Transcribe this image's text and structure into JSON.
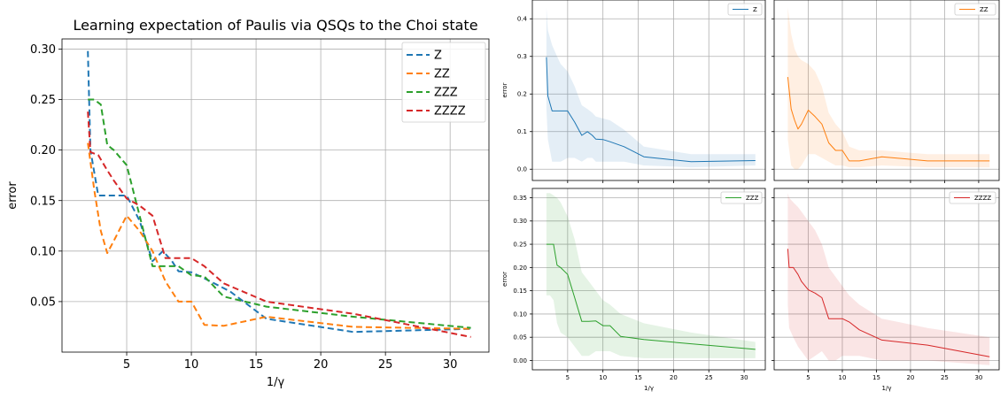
{
  "chart_data": [
    {
      "type": "line",
      "title": "Learning expectation of Paulis via QSQs to the Choi state",
      "xlabel": "1/γ",
      "ylabel": "error",
      "xlim": [
        0,
        33
      ],
      "ylim": [
        0.0,
        0.31
      ],
      "xticks": [
        5,
        10,
        15,
        20,
        25,
        30
      ],
      "yticks": [
        0.05,
        0.1,
        0.15,
        0.2,
        0.25,
        0.3
      ],
      "xtick_labels": [
        "5",
        "10",
        "15",
        "20",
        "25",
        "30"
      ],
      "ytick_labels": [
        "0.05",
        "0.10",
        "0.15",
        "0.20",
        "0.25",
        "0.30"
      ],
      "grid": true,
      "legend_position": "top-right",
      "line_style": "dashed",
      "series": [
        {
          "name": "Z",
          "color": "#1f77b4",
          "x": [
            2.0,
            2.2,
            2.8,
            3.5,
            4.0,
            5.0,
            6.0,
            7.0,
            7.8,
            8.5,
            9.0,
            10.0,
            11.0,
            13.0,
            15.8,
            22.5,
            31.6
          ],
          "y": [
            0.298,
            0.2,
            0.155,
            0.155,
            0.155,
            0.155,
            0.13,
            0.09,
            0.1,
            0.09,
            0.08,
            0.079,
            0.073,
            0.06,
            0.033,
            0.02,
            0.023
          ]
        },
        {
          "name": "ZZ",
          "color": "#ff7f0e",
          "x": [
            2.0,
            2.5,
            3.0,
            3.5,
            4.0,
            5.0,
            6.0,
            7.0,
            8.0,
            9.0,
            10.0,
            11.0,
            12.5,
            15.8,
            22.5,
            31.6
          ],
          "y": [
            0.207,
            0.16,
            0.12,
            0.098,
            0.11,
            0.135,
            0.12,
            0.1,
            0.07,
            0.05,
            0.05,
            0.027,
            0.026,
            0.035,
            0.025,
            0.023
          ]
        },
        {
          "name": "ZZZ",
          "color": "#2ca02c",
          "x": [
            2.0,
            2.5,
            3.0,
            3.5,
            4.0,
            5.0,
            6.0,
            7.0,
            8.0,
            9.0,
            10.0,
            11.0,
            12.5,
            15.8,
            22.5,
            31.6
          ],
          "y": [
            0.25,
            0.25,
            0.245,
            0.205,
            0.2,
            0.185,
            0.135,
            0.085,
            0.085,
            0.085,
            0.076,
            0.075,
            0.055,
            0.045,
            0.035,
            0.024
          ]
        },
        {
          "name": "ZZZZ",
          "color": "#d62728",
          "x": [
            2.0,
            2.2,
            2.8,
            3.5,
            4.0,
            5.0,
            6.0,
            7.0,
            8.0,
            9.0,
            10.0,
            11.0,
            12.5,
            15.8,
            22.5,
            31.6
          ],
          "y": [
            0.238,
            0.198,
            0.195,
            0.18,
            0.17,
            0.152,
            0.145,
            0.135,
            0.093,
            0.093,
            0.093,
            0.085,
            0.068,
            0.05,
            0.038,
            0.015
          ]
        }
      ]
    },
    {
      "type": "line",
      "title": "",
      "xlabel": "",
      "ylabel": "error",
      "xlim": [
        0,
        33
      ],
      "ylim": [
        -0.03,
        0.45
      ],
      "xticks": [
        5,
        10,
        15,
        20,
        25,
        30
      ],
      "yticks": [
        0.0,
        0.1,
        0.2,
        0.3,
        0.4
      ],
      "ytick_labels": [
        "0.0",
        "0.1",
        "0.2",
        "0.3",
        "0.4"
      ],
      "grid": true,
      "legend_position": "top-right",
      "band": true,
      "series": [
        {
          "name": "Z",
          "color": "#1f77b4",
          "x": [
            2.0,
            2.2,
            2.8,
            3.5,
            4.0,
            5.0,
            6.0,
            7.0,
            7.8,
            8.5,
            9.0,
            10.0,
            11.0,
            13.0,
            15.8,
            22.5,
            31.6
          ],
          "y": [
            0.298,
            0.195,
            0.155,
            0.155,
            0.155,
            0.155,
            0.125,
            0.09,
            0.1,
            0.09,
            0.08,
            0.079,
            0.073,
            0.06,
            0.033,
            0.02,
            0.023
          ],
          "upper": [
            0.43,
            0.37,
            0.33,
            0.3,
            0.28,
            0.26,
            0.22,
            0.17,
            0.16,
            0.15,
            0.14,
            0.135,
            0.13,
            0.105,
            0.06,
            0.04,
            0.04
          ],
          "lower": [
            0.16,
            0.08,
            0.02,
            0.02,
            0.02,
            0.03,
            0.03,
            0.02,
            0.03,
            0.03,
            0.02,
            0.02,
            0.02,
            0.02,
            0.01,
            0.005,
            0.01
          ]
        }
      ]
    },
    {
      "type": "line",
      "title": "",
      "xlabel": "",
      "ylabel": "",
      "xlim": [
        0,
        33
      ],
      "ylim": [
        -0.03,
        0.45
      ],
      "xticks": [
        5,
        10,
        15,
        20,
        25,
        30
      ],
      "yticks": [
        0.0,
        0.1,
        0.2,
        0.3,
        0.4
      ],
      "grid": true,
      "legend_position": "top-right",
      "band": true,
      "series": [
        {
          "name": "ZZ",
          "color": "#ff7f0e",
          "x": [
            2.0,
            2.5,
            3.0,
            3.5,
            4.0,
            5.0,
            6.0,
            7.0,
            8.0,
            9.0,
            10.0,
            11.0,
            12.5,
            15.8,
            22.5,
            31.6
          ],
          "y": [
            0.245,
            0.16,
            0.13,
            0.107,
            0.12,
            0.157,
            0.14,
            0.12,
            0.07,
            0.05,
            0.05,
            0.022,
            0.022,
            0.033,
            0.022,
            0.022
          ],
          "upper": [
            0.43,
            0.36,
            0.32,
            0.3,
            0.29,
            0.28,
            0.26,
            0.22,
            0.15,
            0.12,
            0.1,
            0.06,
            0.05,
            0.05,
            0.04,
            0.04
          ],
          "lower": [
            0.08,
            0.01,
            0.0,
            0.0,
            0.01,
            0.04,
            0.04,
            0.03,
            0.02,
            0.01,
            0.01,
            0.005,
            0.005,
            0.01,
            0.005,
            0.005
          ]
        }
      ]
    },
    {
      "type": "line",
      "title": "",
      "xlabel": "1/γ",
      "ylabel": "error",
      "xlim": [
        0,
        33
      ],
      "ylim": [
        -0.02,
        0.37
      ],
      "xticks": [
        5,
        10,
        15,
        20,
        25,
        30
      ],
      "yticks": [
        0.0,
        0.05,
        0.1,
        0.15,
        0.2,
        0.25,
        0.3,
        0.35
      ],
      "xtick_labels": [
        "5",
        "10",
        "15",
        "20",
        "25",
        "30"
      ],
      "ytick_labels": [
        "0.00",
        "0.05",
        "0.10",
        "0.15",
        "0.20",
        "0.25",
        "0.30",
        "0.35"
      ],
      "grid": true,
      "legend_position": "top-right",
      "band": true,
      "series": [
        {
          "name": "ZZZ",
          "color": "#2ca02c",
          "x": [
            2.0,
            2.5,
            3.0,
            3.5,
            4.0,
            5.0,
            6.0,
            7.0,
            8.0,
            9.0,
            10.0,
            11.0,
            12.5,
            15.8,
            22.5,
            31.6
          ],
          "y": [
            0.25,
            0.25,
            0.25,
            0.205,
            0.2,
            0.185,
            0.135,
            0.084,
            0.084,
            0.085,
            0.075,
            0.075,
            0.052,
            0.045,
            0.036,
            0.024
          ],
          "upper": [
            0.36,
            0.36,
            0.355,
            0.35,
            0.34,
            0.31,
            0.26,
            0.19,
            0.17,
            0.15,
            0.13,
            0.12,
            0.1,
            0.08,
            0.06,
            0.04
          ],
          "lower": [
            0.14,
            0.14,
            0.13,
            0.08,
            0.06,
            0.05,
            0.03,
            0.01,
            0.01,
            0.02,
            0.02,
            0.02,
            0.01,
            0.005,
            0.005,
            0.005
          ]
        }
      ]
    },
    {
      "type": "line",
      "title": "",
      "xlabel": "1/γ",
      "ylabel": "",
      "xlim": [
        0,
        33
      ],
      "ylim": [
        -0.02,
        0.37
      ],
      "xticks": [
        5,
        10,
        15,
        20,
        25,
        30
      ],
      "yticks": [
        0.0,
        0.05,
        0.1,
        0.15,
        0.2,
        0.25,
        0.3,
        0.35
      ],
      "xtick_labels": [
        "5",
        "10",
        "15",
        "20",
        "25",
        "30"
      ],
      "grid": true,
      "legend_position": "top-right",
      "band": true,
      "series": [
        {
          "name": "ZZZZ",
          "color": "#d62728",
          "x": [
            2.0,
            2.2,
            2.8,
            3.5,
            4.0,
            5.0,
            6.0,
            7.0,
            8.0,
            9.0,
            10.0,
            11.0,
            12.5,
            15.8,
            22.5,
            31.6
          ],
          "y": [
            0.24,
            0.2,
            0.2,
            0.185,
            0.17,
            0.152,
            0.145,
            0.135,
            0.09,
            0.09,
            0.09,
            0.083,
            0.066,
            0.044,
            0.033,
            0.008
          ],
          "upper": [
            0.36,
            0.35,
            0.34,
            0.33,
            0.32,
            0.3,
            0.28,
            0.25,
            0.2,
            0.18,
            0.16,
            0.14,
            0.12,
            0.09,
            0.07,
            0.05
          ],
          "lower": [
            0.12,
            0.07,
            0.05,
            0.03,
            0.02,
            0.0,
            0.01,
            0.02,
            0.0,
            0.0,
            0.01,
            0.01,
            0.01,
            0.0,
            0.0,
            -0.01
          ]
        }
      ]
    }
  ]
}
